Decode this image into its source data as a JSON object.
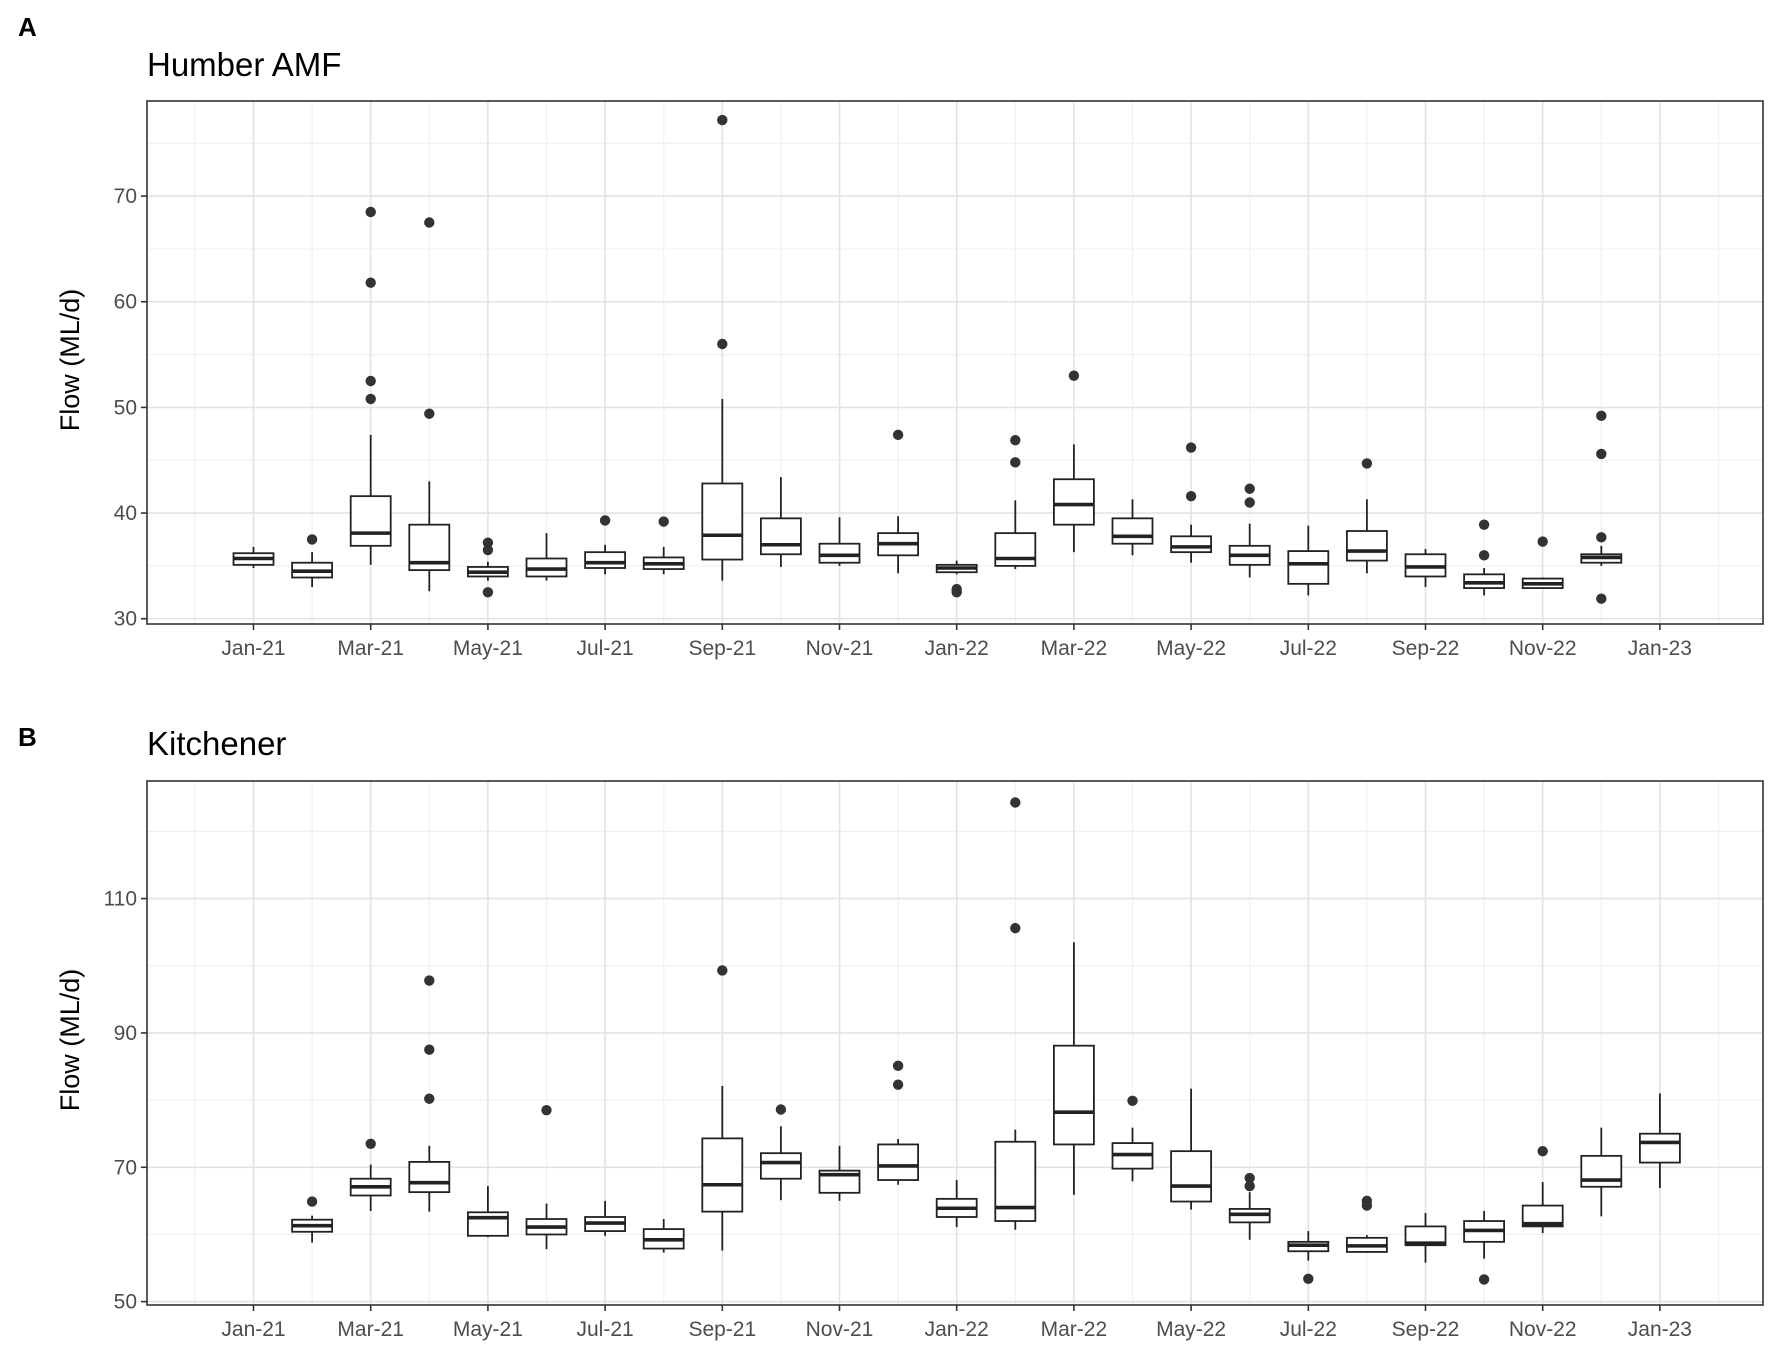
{
  "chart_data": [
    {
      "type": "boxplot",
      "panel_label": "A",
      "title": "Humber AMF",
      "xlabel": "",
      "ylabel": "Flow (ML/d)",
      "ylim": [
        29.5,
        79
      ],
      "yticks": [
        30,
        40,
        50,
        60,
        70
      ],
      "ytick_labels": [
        "30",
        "40",
        "50",
        "60",
        "70"
      ],
      "x_tick_labels": [
        "Jan-21",
        "Mar-21",
        "May-21",
        "Jul-21",
        "Sep-21",
        "Nov-21",
        "Jan-22",
        "Mar-22",
        "May-22",
        "Jul-22",
        "Sep-22",
        "Nov-22",
        "Jan-23"
      ],
      "categories": [
        "Jan-21",
        "Feb-21",
        "Mar-21",
        "Apr-21",
        "May-21",
        "Jun-21",
        "Jul-21",
        "Aug-21",
        "Sep-21",
        "Oct-21",
        "Nov-21",
        "Dec-21",
        "Jan-22",
        "Feb-22",
        "Mar-22",
        "Apr-22",
        "May-22",
        "Jun-22",
        "Jul-22",
        "Aug-22",
        "Sep-22",
        "Oct-22",
        "Nov-22",
        "Dec-22"
      ],
      "boxes": [
        {
          "month": "Jan-21",
          "min": 34.8,
          "q1": 35.1,
          "median": 35.7,
          "q3": 36.2,
          "max": 36.8,
          "outliers": []
        },
        {
          "month": "Feb-21",
          "min": 33.0,
          "q1": 33.9,
          "median": 34.5,
          "q3": 35.3,
          "max": 36.3,
          "outliers": [
            37.5
          ]
        },
        {
          "month": "Mar-21",
          "min": 35.1,
          "q1": 36.9,
          "median": 38.1,
          "q3": 41.6,
          "max": 47.4,
          "outliers": [
            50.8,
            52.5,
            61.8,
            68.5
          ]
        },
        {
          "month": "Apr-21",
          "min": 32.6,
          "q1": 34.6,
          "median": 35.3,
          "q3": 38.9,
          "max": 43.0,
          "outliers": [
            49.4,
            67.5
          ]
        },
        {
          "month": "May-21",
          "min": 33.6,
          "q1": 34.0,
          "median": 34.4,
          "q3": 34.9,
          "max": 35.4,
          "outliers": [
            32.5,
            36.5,
            37.2
          ]
        },
        {
          "month": "Jun-21",
          "min": 33.6,
          "q1": 34.0,
          "median": 34.7,
          "q3": 35.7,
          "max": 38.1,
          "outliers": []
        },
        {
          "month": "Jul-21",
          "min": 34.2,
          "q1": 34.8,
          "median": 35.3,
          "q3": 36.3,
          "max": 37.0,
          "outliers": [
            39.3
          ]
        },
        {
          "month": "Aug-21",
          "min": 34.2,
          "q1": 34.7,
          "median": 35.2,
          "q3": 35.8,
          "max": 36.8,
          "outliers": [
            39.2
          ]
        },
        {
          "month": "Sep-21",
          "min": 33.6,
          "q1": 35.6,
          "median": 37.9,
          "q3": 42.8,
          "max": 50.8,
          "outliers": [
            56.0,
            77.2
          ]
        },
        {
          "month": "Oct-21",
          "min": 34.9,
          "q1": 36.1,
          "median": 37.0,
          "q3": 39.5,
          "max": 43.4,
          "outliers": []
        },
        {
          "month": "Nov-21",
          "min": 35.0,
          "q1": 35.3,
          "median": 36.0,
          "q3": 37.1,
          "max": 39.6,
          "outliers": []
        },
        {
          "month": "Dec-21",
          "min": 34.3,
          "q1": 36.0,
          "median": 37.1,
          "q3": 38.1,
          "max": 39.7,
          "outliers": [
            47.4
          ]
        },
        {
          "month": "Jan-22",
          "min": 34.2,
          "q1": 34.4,
          "median": 34.8,
          "q3": 35.1,
          "max": 35.5,
          "outliers": [
            32.5,
            32.8
          ]
        },
        {
          "month": "Feb-22",
          "min": 34.7,
          "q1": 35.0,
          "median": 35.7,
          "q3": 38.1,
          "max": 41.2,
          "outliers": [
            44.8,
            46.9
          ]
        },
        {
          "month": "Mar-22",
          "min": 36.3,
          "q1": 38.9,
          "median": 40.8,
          "q3": 43.2,
          "max": 46.5,
          "outliers": [
            53.0
          ]
        },
        {
          "month": "Apr-22",
          "min": 36.0,
          "q1": 37.1,
          "median": 37.8,
          "q3": 39.5,
          "max": 41.3,
          "outliers": []
        },
        {
          "month": "May-22",
          "min": 35.3,
          "q1": 36.3,
          "median": 36.8,
          "q3": 37.8,
          "max": 38.9,
          "outliers": [
            41.6,
            46.2
          ]
        },
        {
          "month": "Jun-22",
          "min": 33.9,
          "q1": 35.1,
          "median": 36.0,
          "q3": 36.9,
          "max": 39.0,
          "outliers": [
            41.0,
            42.3
          ]
        },
        {
          "month": "Jul-22",
          "min": 32.2,
          "q1": 33.3,
          "median": 35.2,
          "q3": 36.4,
          "max": 38.8,
          "outliers": []
        },
        {
          "month": "Aug-22",
          "min": 34.3,
          "q1": 35.5,
          "median": 36.4,
          "q3": 38.3,
          "max": 41.3,
          "outliers": [
            44.7
          ]
        },
        {
          "month": "Sep-22",
          "min": 33.0,
          "q1": 34.0,
          "median": 34.9,
          "q3": 36.1,
          "max": 36.6,
          "outliers": []
        },
        {
          "month": "Oct-22",
          "min": 32.2,
          "q1": 32.9,
          "median": 33.4,
          "q3": 34.2,
          "max": 34.8,
          "outliers": [
            36.0,
            38.9
          ]
        },
        {
          "month": "Nov-22",
          "min": 32.9,
          "q1": 32.9,
          "median": 33.3,
          "q3": 33.8,
          "max": 33.9,
          "outliers": [
            37.3
          ]
        },
        {
          "month": "Dec-22",
          "min": 35.0,
          "q1": 35.3,
          "median": 35.8,
          "q3": 36.1,
          "max": 36.9,
          "outliers": [
            31.9,
            37.7,
            45.6,
            49.2
          ]
        }
      ]
    },
    {
      "type": "boxplot",
      "panel_label": "B",
      "title": "Kitchener",
      "xlabel": "",
      "ylabel": "Flow (ML/d)",
      "ylim": [
        49.5,
        127.5
      ],
      "yticks": [
        50,
        70,
        90,
        110
      ],
      "ytick_labels": [
        "50",
        "70",
        "90",
        "110"
      ],
      "x_tick_labels": [
        "Jan-21",
        "Mar-21",
        "May-21",
        "Jul-21",
        "Sep-21",
        "Nov-21",
        "Jan-22",
        "Mar-22",
        "May-22",
        "Jul-22",
        "Sep-22",
        "Nov-22",
        "Jan-23"
      ],
      "categories": [
        "Feb-21",
        "Mar-21",
        "Apr-21",
        "May-21",
        "Jun-21",
        "Jul-21",
        "Aug-21",
        "Sep-21",
        "Oct-21",
        "Nov-21",
        "Dec-21",
        "Jan-22",
        "Feb-22",
        "Mar-22",
        "Apr-22",
        "May-22",
        "Jun-22",
        "Jul-22",
        "Aug-22",
        "Sep-22",
        "Oct-22",
        "Nov-22",
        "Dec-22",
        "Jan-23"
      ],
      "boxes": [
        {
          "month": "Feb-21",
          "min": 58.8,
          "q1": 60.4,
          "median": 61.3,
          "q3": 62.2,
          "max": 62.8,
          "outliers": [
            64.9
          ]
        },
        {
          "month": "Mar-21",
          "min": 63.5,
          "q1": 65.8,
          "median": 67.1,
          "q3": 68.3,
          "max": 70.4,
          "outliers": [
            73.5
          ]
        },
        {
          "month": "Apr-21",
          "min": 63.4,
          "q1": 66.3,
          "median": 67.7,
          "q3": 70.8,
          "max": 73.2,
          "outliers": [
            80.2,
            87.5,
            97.8
          ]
        },
        {
          "month": "May-21",
          "min": 59.6,
          "q1": 59.8,
          "median": 62.5,
          "q3": 63.3,
          "max": 67.2,
          "outliers": []
        },
        {
          "month": "Jun-21",
          "min": 57.8,
          "q1": 60.0,
          "median": 61.1,
          "q3": 62.3,
          "max": 64.6,
          "outliers": [
            78.5
          ]
        },
        {
          "month": "Jul-21",
          "min": 59.8,
          "q1": 60.5,
          "median": 61.7,
          "q3": 62.6,
          "max": 65.0,
          "outliers": []
        },
        {
          "month": "Aug-21",
          "min": 57.3,
          "q1": 57.9,
          "median": 59.2,
          "q3": 60.8,
          "max": 62.3,
          "outliers": []
        },
        {
          "month": "Sep-21",
          "min": 57.6,
          "q1": 63.4,
          "median": 67.4,
          "q3": 74.3,
          "max": 82.1,
          "outliers": [
            99.3
          ]
        },
        {
          "month": "Oct-21",
          "min": 65.1,
          "q1": 68.3,
          "median": 70.7,
          "q3": 72.1,
          "max": 76.1,
          "outliers": [
            78.6
          ]
        },
        {
          "month": "Nov-21",
          "min": 65.0,
          "q1": 66.2,
          "median": 68.9,
          "q3": 69.5,
          "max": 73.2,
          "outliers": []
        },
        {
          "month": "Dec-21",
          "min": 67.4,
          "q1": 68.1,
          "median": 70.2,
          "q3": 73.4,
          "max": 74.2,
          "outliers": [
            82.3,
            85.1
          ]
        },
        {
          "month": "Jan-22",
          "min": 61.1,
          "q1": 62.6,
          "median": 63.9,
          "q3": 65.3,
          "max": 68.1,
          "outliers": []
        },
        {
          "month": "Feb-22",
          "min": 60.7,
          "q1": 62.0,
          "median": 64.0,
          "q3": 73.8,
          "max": 75.6,
          "outliers": [
            105.6,
            124.3
          ]
        },
        {
          "month": "Mar-22",
          "min": 65.9,
          "q1": 73.4,
          "median": 78.2,
          "q3": 88.1,
          "max": 103.5,
          "outliers": []
        },
        {
          "month": "Apr-22",
          "min": 67.9,
          "q1": 69.8,
          "median": 71.9,
          "q3": 73.6,
          "max": 75.9,
          "outliers": [
            79.9
          ]
        },
        {
          "month": "May-22",
          "min": 63.7,
          "q1": 64.9,
          "median": 67.2,
          "q3": 72.4,
          "max": 81.7,
          "outliers": []
        },
        {
          "month": "Jun-22",
          "min": 59.2,
          "q1": 61.8,
          "median": 63.0,
          "q3": 63.8,
          "max": 66.3,
          "outliers": [
            67.2,
            68.4
          ]
        },
        {
          "month": "Jul-22",
          "min": 56.1,
          "q1": 57.5,
          "median": 58.4,
          "q3": 58.9,
          "max": 60.5,
          "outliers": [
            53.4
          ]
        },
        {
          "month": "Aug-22",
          "min": 57.3,
          "q1": 57.4,
          "median": 58.3,
          "q3": 59.5,
          "max": 59.9,
          "outliers": [
            64.3,
            65.0
          ]
        },
        {
          "month": "Sep-22",
          "min": 55.8,
          "q1": 58.4,
          "median": 58.7,
          "q3": 61.2,
          "max": 63.2,
          "outliers": []
        },
        {
          "month": "Oct-22",
          "min": 56.4,
          "q1": 58.9,
          "median": 60.6,
          "q3": 62.0,
          "max": 63.5,
          "outliers": [
            53.3
          ]
        },
        {
          "month": "Nov-22",
          "min": 60.2,
          "q1": 61.2,
          "median": 61.6,
          "q3": 64.3,
          "max": 67.8,
          "outliers": [
            72.4
          ]
        },
        {
          "month": "Dec-22",
          "min": 62.7,
          "q1": 67.1,
          "median": 68.1,
          "q3": 71.7,
          "max": 75.9,
          "outliers": []
        },
        {
          "month": "Jan-23",
          "min": 66.9,
          "q1": 70.7,
          "median": 73.7,
          "q3": 75.0,
          "max": 81.0,
          "outliers": []
        }
      ]
    }
  ]
}
